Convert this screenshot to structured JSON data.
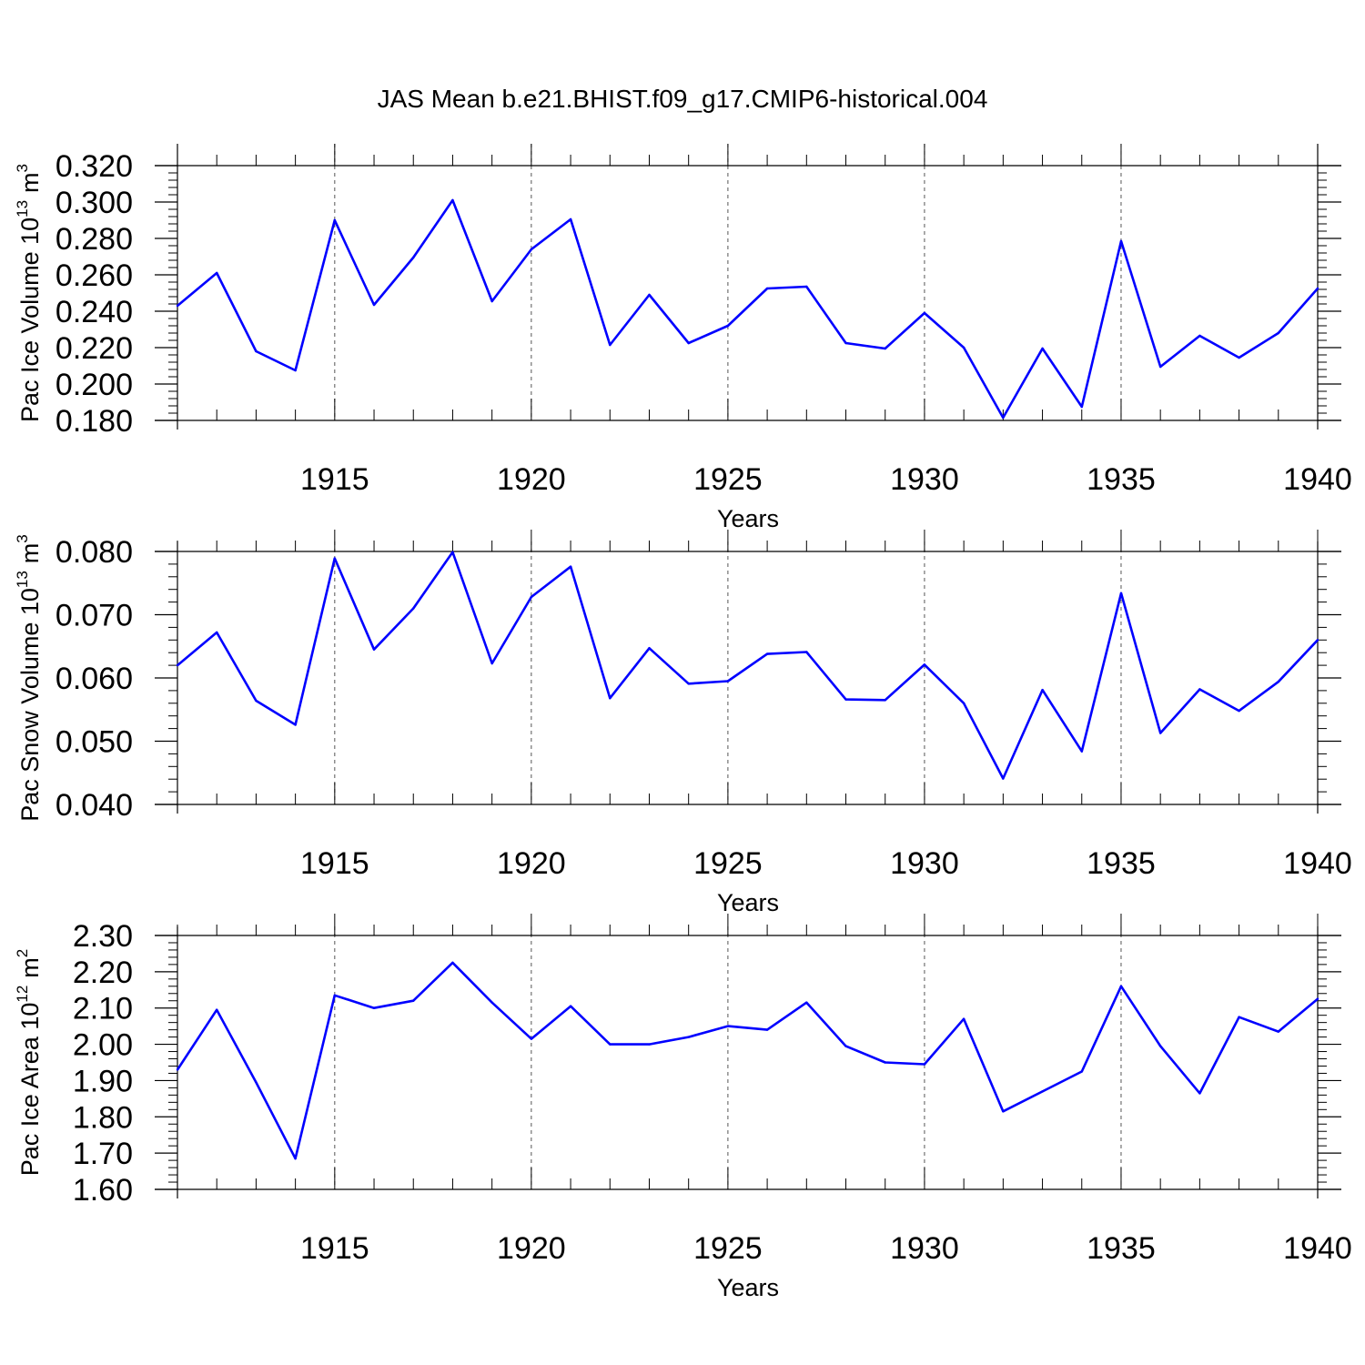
{
  "title": "JAS Mean b.e21.BHIST.f09_g17.CMIP6-historical.004",
  "line_color": "#0000ff",
  "chart_data": [
    {
      "type": "line",
      "ylabel_main": "Pac Ice Volume 10",
      "ylabel_exp": "13",
      "ylabel_unit": "m",
      "ylabel_unit_exp": "3",
      "xlabel": "Years",
      "xlim": [
        1911,
        1940
      ],
      "ylim": [
        0.18,
        0.32
      ],
      "yticks": [
        0.18,
        0.2,
        0.22,
        0.24,
        0.26,
        0.28,
        0.3,
        0.32
      ],
      "ytick_labels": [
        "0.180",
        "0.200",
        "0.220",
        "0.240",
        "0.260",
        "0.280",
        "0.300",
        "0.320"
      ],
      "xticks": [
        1915,
        1920,
        1925,
        1930,
        1935,
        1940
      ],
      "xtick_labels": [
        "1915",
        "1920",
        "1925",
        "1930",
        "1935",
        "1940"
      ],
      "x": [
        1911,
        1912,
        1913,
        1914,
        1915,
        1916,
        1917,
        1918,
        1919,
        1920,
        1921,
        1922,
        1923,
        1924,
        1925,
        1926,
        1927,
        1928,
        1929,
        1930,
        1931,
        1932,
        1933,
        1934,
        1935,
        1936,
        1937,
        1938,
        1939,
        1940
      ],
      "values": [
        0.243,
        0.261,
        0.218,
        0.2075,
        0.29,
        0.2435,
        0.2695,
        0.301,
        0.2455,
        0.274,
        0.2905,
        0.2215,
        0.249,
        0.2225,
        0.232,
        0.2525,
        0.2535,
        0.2225,
        0.2195,
        0.239,
        0.22,
        0.1815,
        0.2195,
        0.1875,
        0.2785,
        0.2095,
        0.2265,
        0.2145,
        0.228,
        0.2525
      ]
    },
    {
      "type": "line",
      "ylabel_main": "Pac Snow Volume 10",
      "ylabel_exp": "13",
      "ylabel_unit": "m",
      "ylabel_unit_exp": "3",
      "xlabel": "Years",
      "xlim": [
        1911,
        1940
      ],
      "ylim": [
        0.04,
        0.08
      ],
      "yticks": [
        0.04,
        0.05,
        0.06,
        0.07,
        0.08
      ],
      "ytick_labels": [
        "0.040",
        "0.050",
        "0.060",
        "0.070",
        "0.080"
      ],
      "xticks": [
        1915,
        1920,
        1925,
        1930,
        1935,
        1940
      ],
      "xtick_labels": [
        "1915",
        "1920",
        "1925",
        "1930",
        "1935",
        "1940"
      ],
      "x": [
        1911,
        1912,
        1913,
        1914,
        1915,
        1916,
        1917,
        1918,
        1919,
        1920,
        1921,
        1922,
        1923,
        1924,
        1925,
        1926,
        1927,
        1928,
        1929,
        1930,
        1931,
        1932,
        1933,
        1934,
        1935,
        1936,
        1937,
        1938,
        1939,
        1940
      ],
      "values": [
        0.062,
        0.0672,
        0.0564,
        0.0526,
        0.0789,
        0.0645,
        0.071,
        0.0799,
        0.0623,
        0.0728,
        0.0776,
        0.0568,
        0.0647,
        0.0591,
        0.0595,
        0.0638,
        0.0641,
        0.0566,
        0.0565,
        0.0621,
        0.056,
        0.0441,
        0.0581,
        0.0484,
        0.0734,
        0.0513,
        0.0582,
        0.0548,
        0.0594,
        0.066
      ]
    },
    {
      "type": "line",
      "ylabel_main": "Pac Ice Area 10",
      "ylabel_exp": "12",
      "ylabel_unit": "m",
      "ylabel_unit_exp": "2",
      "xlabel": "Years",
      "xlim": [
        1911,
        1940
      ],
      "ylim": [
        1.6,
        2.3
      ],
      "yticks": [
        1.6,
        1.7,
        1.8,
        1.9,
        2.0,
        2.1,
        2.2,
        2.3
      ],
      "ytick_labels": [
        "1.60",
        "1.70",
        "1.80",
        "1.90",
        "2.00",
        "2.10",
        "2.20",
        "2.30"
      ],
      "xticks": [
        1915,
        1920,
        1925,
        1930,
        1935,
        1940
      ],
      "xtick_labels": [
        "1915",
        "1920",
        "1925",
        "1930",
        "1935",
        "1940"
      ],
      "x": [
        1911,
        1912,
        1913,
        1914,
        1915,
        1916,
        1917,
        1918,
        1919,
        1920,
        1921,
        1922,
        1923,
        1924,
        1925,
        1926,
        1927,
        1928,
        1929,
        1930,
        1931,
        1932,
        1933,
        1934,
        1935,
        1936,
        1937,
        1938,
        1939,
        1940
      ],
      "values": [
        1.93,
        2.095,
        1.895,
        1.685,
        2.135,
        2.1,
        2.12,
        2.225,
        2.115,
        2.015,
        2.105,
        2.0,
        2.0,
        2.02,
        2.05,
        2.04,
        2.115,
        1.995,
        1.95,
        1.945,
        2.07,
        1.815,
        1.87,
        1.925,
        2.16,
        1.995,
        1.865,
        2.075,
        2.035,
        2.125
      ]
    }
  ]
}
